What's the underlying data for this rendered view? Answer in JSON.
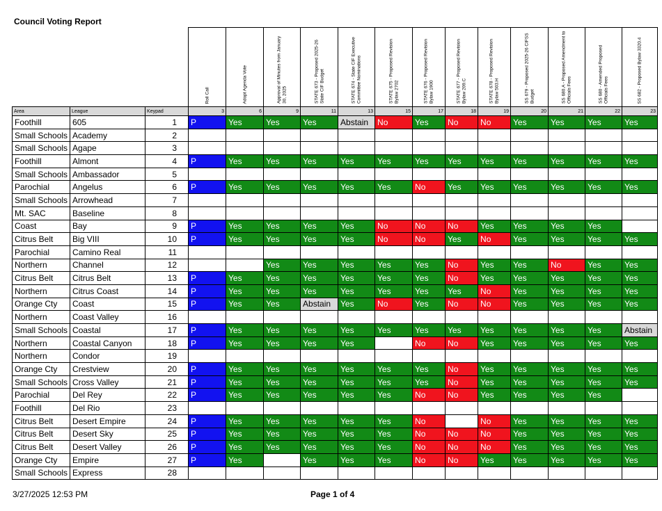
{
  "report_title": "Council Voting Report",
  "footer": {
    "timestamp": "3/27/2025 12:53 PM",
    "page": "Page 1 of 4"
  },
  "columns_header": {
    "area": "Area",
    "league": "League",
    "keypad": "Keypad"
  },
  "vote_columns": [
    {
      "label": "Roll Call",
      "num": "3"
    },
    {
      "label": "Adopt Agenda Vote",
      "num": "6"
    },
    {
      "label": "Approval of Minutes from January 30, 2025",
      "num": "9"
    },
    {
      "label": "STATE 673 - Proposed 2025-26 State CIF Budget",
      "num": "11"
    },
    {
      "label": "STATE 674 - State CIF Executive Committee Nominations",
      "num": "13"
    },
    {
      "label": "STATE 675 - Proposed Revision Bylaw 2702",
      "num": "15"
    },
    {
      "label": "STATE 676 - Proposed Revision Bylaw 1900",
      "num": "17"
    },
    {
      "label": "STATE 677 - Proposed Revision Bylaw 209.C",
      "num": "18"
    },
    {
      "label": "STATE 678 - Proposed Revision Bylaw 503.H",
      "num": "19"
    },
    {
      "label": "SS 679 - Proposed 2025-26 CIFSS Budget",
      "num": "20"
    },
    {
      "label": "SS 680.A - Proposed Amendment to Officials Fees",
      "num": "21"
    },
    {
      "label": "SS 680 - Amended Proposed Officials Fees",
      "num": "22"
    },
    {
      "label": "SS 682 - Proposed Bylaw 3320.4",
      "num": "23"
    }
  ],
  "rows": [
    {
      "area": "Foothill",
      "league": "605",
      "keypad": "1",
      "votes": [
        "P",
        "Yes",
        "Yes",
        "Yes",
        "Abstain",
        "No",
        "Yes",
        "No",
        "No",
        "Yes",
        "Yes",
        "Yes",
        "Yes"
      ]
    },
    {
      "area": "Small Schools",
      "league": "Academy",
      "keypad": "2",
      "votes": [
        "",
        "",
        "",
        "",
        "",
        "",
        "",
        "",
        "",
        "",
        "",
        "",
        ""
      ]
    },
    {
      "area": "Small Schools",
      "league": "Agape",
      "keypad": "3",
      "votes": [
        "",
        "",
        "",
        "",
        "",
        "",
        "",
        "",
        "",
        "",
        "",
        "",
        ""
      ]
    },
    {
      "area": "Foothill",
      "league": "Almont",
      "keypad": "4",
      "votes": [
        "P",
        "Yes",
        "Yes",
        "Yes",
        "Yes",
        "Yes",
        "Yes",
        "Yes",
        "Yes",
        "Yes",
        "Yes",
        "Yes",
        "Yes"
      ]
    },
    {
      "area": "Small Schools",
      "league": "Ambassador",
      "keypad": "5",
      "votes": [
        "",
        "",
        "",
        "",
        "",
        "",
        "",
        "",
        "",
        "",
        "",
        "",
        ""
      ]
    },
    {
      "area": "Parochial",
      "league": "Angelus",
      "keypad": "6",
      "votes": [
        "P",
        "Yes",
        "Yes",
        "Yes",
        "Yes",
        "Yes",
        "No",
        "Yes",
        "Yes",
        "Yes",
        "Yes",
        "Yes",
        "Yes"
      ]
    },
    {
      "area": "Small Schools",
      "league": "Arrowhead",
      "keypad": "7",
      "votes": [
        "",
        "",
        "",
        "",
        "",
        "",
        "",
        "",
        "",
        "",
        "",
        "",
        ""
      ]
    },
    {
      "area": "Mt. SAC",
      "league": "Baseline",
      "keypad": "8",
      "votes": [
        "",
        "",
        "",
        "",
        "",
        "",
        "",
        "",
        "",
        "",
        "",
        "",
        ""
      ]
    },
    {
      "area": "Coast",
      "league": "Bay",
      "keypad": "9",
      "votes": [
        "P",
        "Yes",
        "Yes",
        "Yes",
        "Yes",
        "No",
        "No",
        "No",
        "Yes",
        "Yes",
        "Yes",
        "Yes",
        ""
      ]
    },
    {
      "area": "Citrus Belt",
      "league": "Big VIII",
      "keypad": "10",
      "votes": [
        "P",
        "Yes",
        "Yes",
        "Yes",
        "Yes",
        "No",
        "No",
        "Yes",
        "No",
        "Yes",
        "Yes",
        "Yes",
        "Yes"
      ]
    },
    {
      "area": "Parochial",
      "league": "Camino Real",
      "keypad": "11",
      "votes": [
        "",
        "",
        "",
        "",
        "",
        "",
        "",
        "",
        "",
        "",
        "",
        "",
        ""
      ]
    },
    {
      "area": "Northern",
      "league": "Channel",
      "keypad": "12",
      "votes": [
        "",
        "",
        "Yes",
        "Yes",
        "Yes",
        "Yes",
        "Yes",
        "No",
        "Yes",
        "Yes",
        "No",
        "Yes",
        "Yes"
      ]
    },
    {
      "area": "Citrus Belt",
      "league": "Citrus Belt",
      "keypad": "13",
      "votes": [
        "P",
        "Yes",
        "Yes",
        "Yes",
        "Yes",
        "Yes",
        "Yes",
        "No",
        "Yes",
        "Yes",
        "Yes",
        "Yes",
        "Yes"
      ]
    },
    {
      "area": "Northern",
      "league": "Citrus Coast",
      "keypad": "14",
      "votes": [
        "P",
        "Yes",
        "Yes",
        "Yes",
        "Yes",
        "Yes",
        "Yes",
        "Yes",
        "No",
        "Yes",
        "Yes",
        "Yes",
        "Yes"
      ]
    },
    {
      "area": "Orange Cty",
      "league": "Coast",
      "keypad": "15",
      "votes": [
        "P",
        "Yes",
        "Yes",
        "Abstain",
        "Yes",
        "No",
        "Yes",
        "No",
        "No",
        "Yes",
        "Yes",
        "Yes",
        "Yes"
      ]
    },
    {
      "area": "Northern",
      "league": "Coast Valley",
      "keypad": "16",
      "votes": [
        "",
        "",
        "",
        "",
        "",
        "",
        "",
        "",
        "",
        "",
        "",
        "",
        ""
      ]
    },
    {
      "area": "Small Schools",
      "league": "Coastal",
      "keypad": "17",
      "votes": [
        "P",
        "Yes",
        "Yes",
        "Yes",
        "Yes",
        "Yes",
        "Yes",
        "Yes",
        "Yes",
        "Yes",
        "Yes",
        "Yes",
        "Abstain"
      ]
    },
    {
      "area": "Northern",
      "league": "Coastal Canyon",
      "keypad": "18",
      "votes": [
        "P",
        "Yes",
        "Yes",
        "Yes",
        "Yes",
        "",
        "No",
        "No",
        "Yes",
        "Yes",
        "Yes",
        "Yes",
        "Yes"
      ]
    },
    {
      "area": "Northern",
      "league": "Condor",
      "keypad": "19",
      "votes": [
        "",
        "",
        "",
        "",
        "",
        "",
        "",
        "",
        "",
        "",
        "",
        "",
        ""
      ]
    },
    {
      "area": "Orange Cty",
      "league": "Crestview",
      "keypad": "20",
      "votes": [
        "P",
        "Yes",
        "Yes",
        "Yes",
        "Yes",
        "Yes",
        "Yes",
        "No",
        "Yes",
        "Yes",
        "Yes",
        "Yes",
        "Yes"
      ]
    },
    {
      "area": "Small Schools",
      "league": "Cross Valley",
      "keypad": "21",
      "votes": [
        "P",
        "Yes",
        "Yes",
        "Yes",
        "Yes",
        "Yes",
        "Yes",
        "No",
        "Yes",
        "Yes",
        "Yes",
        "Yes",
        "Yes"
      ]
    },
    {
      "area": "Parochial",
      "league": "Del Rey",
      "keypad": "22",
      "votes": [
        "P",
        "Yes",
        "Yes",
        "Yes",
        "Yes",
        "Yes",
        "No",
        "No",
        "Yes",
        "Yes",
        "Yes",
        "Yes",
        ""
      ]
    },
    {
      "area": "Foothill",
      "league": "Del Rio",
      "keypad": "23",
      "votes": [
        "",
        "",
        "",
        "",
        "",
        "",
        "",
        "",
        "",
        "",
        "",
        "",
        ""
      ]
    },
    {
      "area": "Citrus Belt",
      "league": "Desert Empire",
      "keypad": "24",
      "votes": [
        "P",
        "Yes",
        "Yes",
        "Yes",
        "Yes",
        "Yes",
        "No",
        "",
        "No",
        "Yes",
        "Yes",
        "Yes",
        "Yes"
      ]
    },
    {
      "area": "Citrus Belt",
      "league": "Desert Sky",
      "keypad": "25",
      "votes": [
        "P",
        "Yes",
        "Yes",
        "Yes",
        "Yes",
        "Yes",
        "No",
        "No",
        "No",
        "Yes",
        "Yes",
        "Yes",
        "Yes"
      ]
    },
    {
      "area": "Citrus Belt",
      "league": "Desert Valley",
      "keypad": "26",
      "votes": [
        "P",
        "Yes",
        "Yes",
        "Yes",
        "Yes",
        "Yes",
        "No",
        "No",
        "No",
        "Yes",
        "Yes",
        "Yes",
        "Yes"
      ]
    },
    {
      "area": "Orange Cty",
      "league": "Empire",
      "keypad": "27",
      "votes": [
        "P",
        "Yes",
        "",
        "Yes",
        "Yes",
        "Yes",
        "No",
        "No",
        "Yes",
        "Yes",
        "Yes",
        "Yes",
        "Yes"
      ]
    },
    {
      "area": "Small Schools",
      "league": "Express",
      "keypad": "28",
      "votes": [
        "",
        "",
        "",
        "",
        "",
        "",
        "",
        "",
        "",
        "",
        "",
        "",
        ""
      ]
    }
  ],
  "colors": {
    "yes": "#128a16",
    "no": "#f0141e",
    "present": "#1212f0",
    "abstain": "#d9d9d9"
  }
}
